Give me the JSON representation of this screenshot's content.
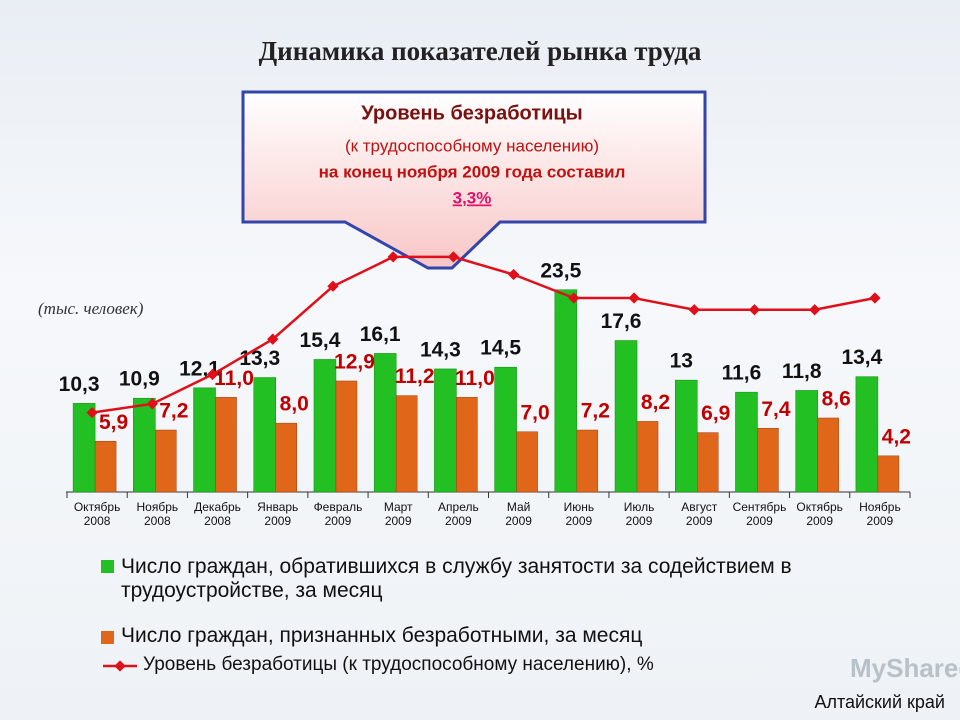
{
  "chart_data": {
    "type": "bar",
    "title": "Динамика показателей рынка труда",
    "units_label": "(тыс. человек)",
    "callout": {
      "title": "Уровень безработицы",
      "lines": [
        "(к трудоспособному населению)",
        "на конец ноября 2009 года составил"
      ],
      "highlight": "3,3%"
    },
    "categories": [
      [
        "Октябрь",
        "2008"
      ],
      [
        "Ноябрь",
        "2008"
      ],
      [
        "Декабрь",
        "2008"
      ],
      [
        "Январь",
        "2009"
      ],
      [
        "Февраль",
        "2009"
      ],
      [
        "Март",
        "2009"
      ],
      [
        "Апрель",
        "2009"
      ],
      [
        "Май",
        "2009"
      ],
      [
        "Июнь",
        "2009"
      ],
      [
        "Июль",
        "2009"
      ],
      [
        "Август",
        "2009"
      ],
      [
        "Сентябрь",
        "2009"
      ],
      [
        "Октябрь",
        "2009"
      ],
      [
        "Ноябрь",
        "2009"
      ]
    ],
    "ylim": [
      0,
      28
    ],
    "y2lim": [
      0,
      4.1
    ],
    "series": [
      {
        "name": "Число граждан, обратившихся в службу занятости за содействием в трудоустройстве, за месяц",
        "color": "#22c022",
        "values": [
          10.3,
          10.9,
          12.1,
          13.3,
          15.4,
          16.1,
          14.3,
          14.5,
          23.5,
          17.6,
          13,
          11.6,
          11.8,
          13.4
        ],
        "value_labels": [
          "10,3",
          "10,9",
          "12,1",
          "13,3",
          "15,4",
          "16,1",
          "14,3",
          "14,5",
          "23,5",
          "17,6",
          "13",
          "11,6",
          "11,8",
          "13,4"
        ]
      },
      {
        "name": "Число граждан, признанных безработными, за месяц",
        "color": "#e0661a",
        "values": [
          5.9,
          7.2,
          11.0,
          8.0,
          12.9,
          11.2,
          11.0,
          7.0,
          7.2,
          8.2,
          6.9,
          7.4,
          8.6,
          4.2
        ],
        "value_labels": [
          "5,9",
          "7,2",
          "11,0",
          "8,0",
          "12,9",
          "11,2",
          "11,0",
          "7,0",
          "7,2",
          "8,2",
          "6,9",
          "7,4",
          "8,6",
          "4,2"
        ]
      },
      {
        "name": "Уровень безработицы (к трудоспособному населению), %",
        "color": "#e0101a",
        "type": "line",
        "axis": "y2",
        "values": [
          1.35,
          1.5,
          2.0,
          2.6,
          3.5,
          4.0,
          4.0,
          3.7,
          3.3,
          3.3,
          3.1,
          3.1,
          3.1,
          3.3
        ]
      }
    ],
    "region": "Алтайский край",
    "watermark": "MyShared"
  }
}
